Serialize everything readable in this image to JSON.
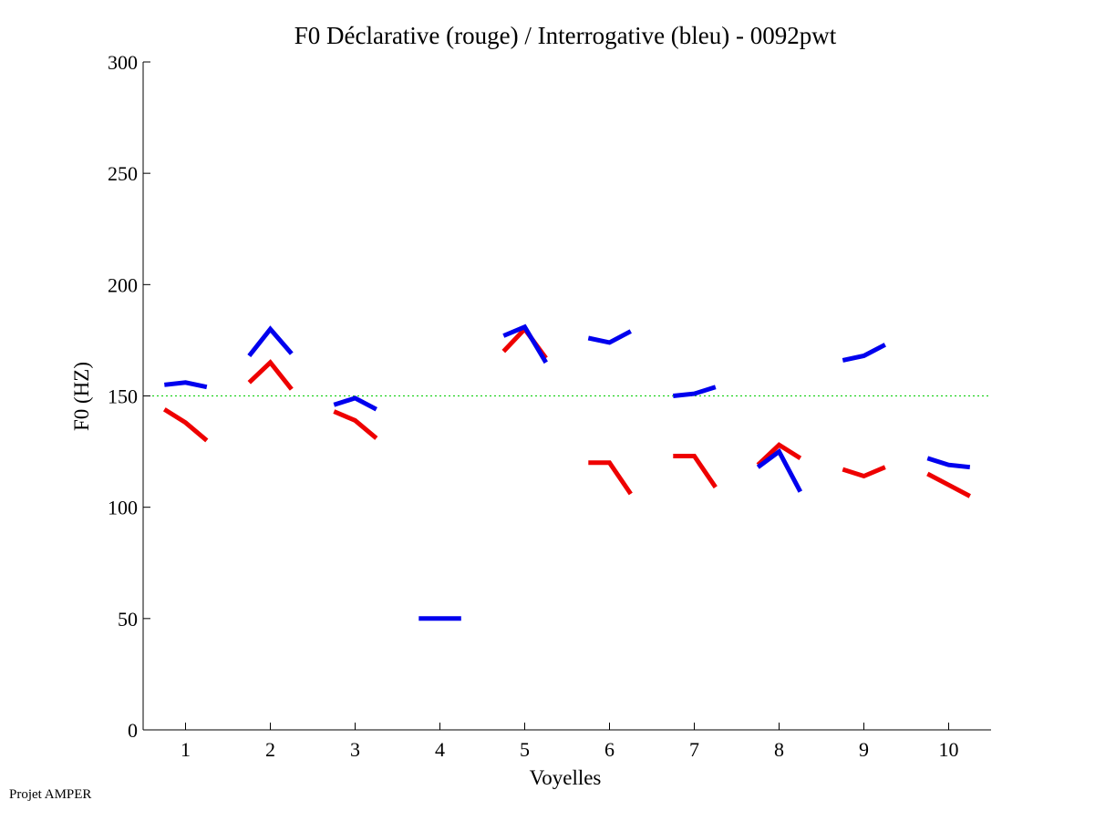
{
  "footer": "Projet AMPER",
  "chart_data": {
    "type": "line",
    "title": "F0 Déclarative (rouge) / Interrogative (bleu) - 0092pwt",
    "xlabel": "Voyelles",
    "ylabel": "F0 (HZ)",
    "xlim": [
      0.5,
      10.5
    ],
    "ylim": [
      0,
      300
    ],
    "xticks": [
      1,
      2,
      3,
      4,
      5,
      6,
      7,
      8,
      9,
      10
    ],
    "yticks": [
      0,
      50,
      100,
      150,
      200,
      250,
      300
    ],
    "reference_line": {
      "y": 150,
      "color": "#00cc00",
      "style": "dotted"
    },
    "series": [
      {
        "name": "Déclarative (rouge)",
        "color": "#ee0000",
        "segments": [
          {
            "vowel": 1,
            "values": [
              144,
              138,
              130
            ]
          },
          {
            "vowel": 2,
            "values": [
              156,
              165,
              153
            ]
          },
          {
            "vowel": 3,
            "values": [
              143,
              139,
              131
            ]
          },
          {
            "vowel": 5,
            "values": [
              170,
              180,
              167
            ]
          },
          {
            "vowel": 6,
            "values": [
              120,
              120,
              106
            ]
          },
          {
            "vowel": 7,
            "values": [
              123,
              123,
              109
            ]
          },
          {
            "vowel": 8,
            "values": [
              119,
              128,
              122
            ]
          },
          {
            "vowel": 9,
            "values": [
              117,
              114,
              118
            ]
          },
          {
            "vowel": 10,
            "values": [
              115,
              110,
              105
            ]
          }
        ]
      },
      {
        "name": "Interrogative (bleu)",
        "color": "#0000ee",
        "segments": [
          {
            "vowel": 1,
            "values": [
              155,
              156,
              154
            ]
          },
          {
            "vowel": 2,
            "values": [
              168,
              180,
              169
            ]
          },
          {
            "vowel": 3,
            "values": [
              146,
              149,
              144
            ]
          },
          {
            "vowel": 4,
            "values": [
              50,
              50,
              50
            ]
          },
          {
            "vowel": 5,
            "values": [
              177,
              181,
              165
            ]
          },
          {
            "vowel": 6,
            "values": [
              176,
              174,
              179
            ]
          },
          {
            "vowel": 7,
            "values": [
              150,
              151,
              154
            ]
          },
          {
            "vowel": 8,
            "values": [
              118,
              125,
              107
            ]
          },
          {
            "vowel": 9,
            "values": [
              166,
              168,
              173
            ]
          },
          {
            "vowel": 10,
            "values": [
              122,
              119,
              118
            ]
          }
        ]
      }
    ]
  }
}
